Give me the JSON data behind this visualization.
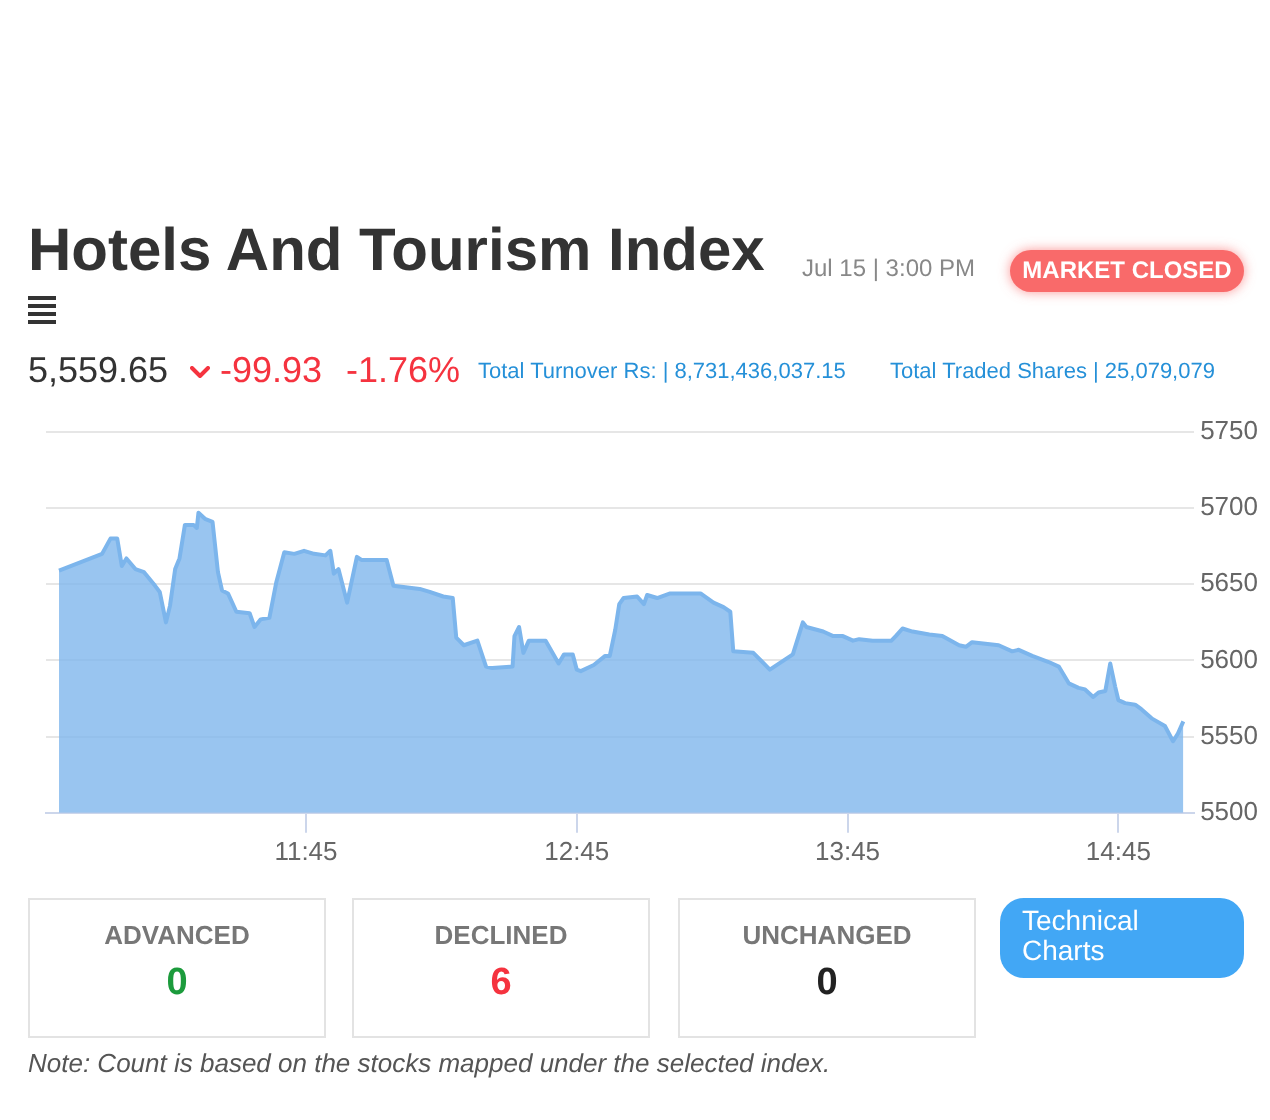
{
  "chart_data": {
    "type": "area",
    "title": "Hotels And Tourism Index",
    "subtitle": "Jul 15 | 3:00 PM",
    "annotations": [
      "MARKET CLOSED",
      "5,559.65",
      "-99.93",
      "-1.76%",
      "Total Turnover Rs: | 8,731,436,037.15",
      "Total Traded Shares | 25,079,079",
      "ADVANCED",
      "0",
      "DECLINED",
      "6",
      "UNCHANGED",
      "0",
      "Technical Charts",
      "Note: Count is based on the stocks mapped under the selected index."
    ],
    "x": [
      10.838,
      10.997,
      11.028,
      11.053,
      11.07,
      11.087,
      11.12,
      11.152,
      11.193,
      11.21,
      11.233,
      11.248,
      11.267,
      11.283,
      11.303,
      11.335,
      11.347,
      11.353,
      11.377,
      11.405,
      11.425,
      11.44,
      11.462,
      11.493,
      11.542,
      11.56,
      11.583,
      11.615,
      11.64,
      11.67,
      11.707,
      11.743,
      11.78,
      11.822,
      11.84,
      11.853,
      11.87,
      11.902,
      11.938,
      11.955,
      12.048,
      12.073,
      12.17,
      12.207,
      12.257,
      12.292,
      12.305,
      12.333,
      12.383,
      12.415,
      12.438,
      12.513,
      12.52,
      12.537,
      12.553,
      12.573,
      12.635,
      12.683,
      12.703,
      12.735,
      12.75,
      12.765,
      12.813,
      12.855,
      12.872,
      12.892,
      12.907,
      12.923,
      12.973,
      12.998,
      13.01,
      13.047,
      13.095,
      13.207,
      13.255,
      13.292,
      13.317,
      13.328,
      13.402,
      13.463,
      13.548,
      13.585,
      13.598,
      13.66,
      13.697,
      13.733,
      13.77,
      13.793,
      13.843,
      13.912,
      13.928,
      13.953,
      13.99,
      14.052,
      14.1,
      14.162,
      14.187,
      14.21,
      14.308,
      14.358,
      14.382,
      14.432,
      14.493,
      14.53,
      14.567,
      14.603,
      14.627,
      14.657,
      14.677,
      14.702,
      14.72,
      14.738,
      14.75,
      14.775,
      14.812,
      14.835,
      14.873,
      14.922,
      14.952,
      14.97,
      14.99
    ],
    "values": [
      5659,
      5670,
      5680,
      5680,
      5662,
      5667,
      5660,
      5658,
      5649,
      5645,
      5625,
      5636,
      5660,
      5667,
      5689,
      5689,
      5687,
      5697,
      5693,
      5691,
      5658,
      5646,
      5644,
      5632,
      5631,
      5622,
      5627,
      5628,
      5651,
      5671,
      5670,
      5672,
      5670,
      5669,
      5672,
      5657,
      5660,
      5638,
      5668,
      5666,
      5666,
      5649,
      5647,
      5645,
      5642,
      5641,
      5615,
      5610,
      5613,
      5596,
      5595,
      5596,
      5616,
      5622,
      5605,
      5613,
      5613,
      5598,
      5604,
      5604,
      5594,
      5593,
      5597,
      5603,
      5603,
      5620,
      5637,
      5641,
      5642,
      5637,
      5643,
      5641,
      5644,
      5644,
      5638,
      5635,
      5632,
      5606,
      5605,
      5594,
      5604,
      5625,
      5622,
      5619,
      5616,
      5616,
      5613,
      5614,
      5613,
      5613,
      5616,
      5621,
      5619,
      5617,
      5616,
      5610,
      5609,
      5612,
      5610,
      5606,
      5607,
      5603,
      5599,
      5596,
      5585,
      5582,
      5581,
      5576,
      5579,
      5580,
      5598,
      5583,
      5574,
      5572,
      5571,
      5568,
      5562,
      5557,
      5547,
      5552,
      5560
    ],
    "color": "#7cb5ec",
    "xlim": [
      10.79,
      15.03
    ],
    "xticks": [
      {
        "value": 11.75,
        "label": "11:45"
      },
      {
        "value": 12.75,
        "label": "12:45"
      },
      {
        "value": 13.75,
        "label": "13:45"
      },
      {
        "value": 14.75,
        "label": "14:45"
      }
    ],
    "ylim": [
      5500,
      5750
    ],
    "yticks": [
      5500,
      5550,
      5600,
      5650,
      5700,
      5750
    ],
    "grid": "y"
  }
}
